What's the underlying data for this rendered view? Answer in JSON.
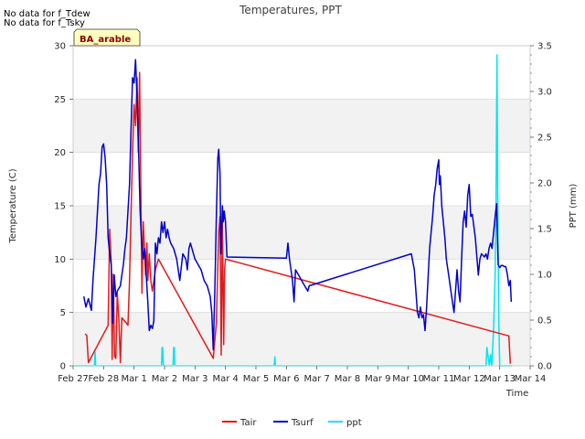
{
  "notes": [
    "No data for f_Tdew",
    "No data for f_Tsky"
  ],
  "site_label": "BA_arable",
  "colors": {
    "Tair": "#e31a1c",
    "Tsurf": "#0000cc",
    "ppt": "#00e5ee",
    "band": "#f2f2f2",
    "grid": "#dcdcdc",
    "site_bg": "#ffffc0"
  },
  "chart_data": {
    "type": "line",
    "title": "Temperatures, PPT",
    "xlabel": "Time",
    "ylabel": "Temperature (C)",
    "y2label": "PPT (mm)",
    "xlim": [
      0,
      15
    ],
    "ylim": [
      0,
      30
    ],
    "y2lim": [
      0,
      3.5
    ],
    "x_ticks": [
      0,
      1,
      2,
      3,
      4,
      5,
      6,
      7,
      8,
      9,
      10,
      11,
      12,
      13,
      14,
      15
    ],
    "x_tick_labels": [
      "Feb 27",
      "Feb 28",
      "Mar 1",
      "Mar 2",
      "Mar 3",
      "Mar 4",
      "Mar 5",
      "Mar 6",
      "Mar 7",
      "Mar 8",
      "Mar 9",
      "Mar 10",
      "Mar 11",
      "Mar 12",
      "Mar 13",
      "Mar 14"
    ],
    "y_ticks": [
      0,
      5,
      10,
      15,
      20,
      25,
      30
    ],
    "y2_ticks": [
      0,
      0.5,
      1.0,
      1.5,
      2.0,
      2.5,
      3.0,
      3.5
    ],
    "y2_tick_labels": [
      "0.0",
      "0.5",
      "1.0",
      "1.5",
      "2.0",
      "2.5",
      "3.0",
      "3.5"
    ],
    "series": [
      {
        "name": "Tair",
        "axis": "left",
        "points": [
          [
            0.4,
            3.0
          ],
          [
            0.45,
            2.8
          ],
          [
            0.5,
            0.3
          ],
          [
            1.15,
            3.8
          ],
          [
            1.2,
            12.8
          ],
          [
            1.25,
            9.6
          ],
          [
            1.28,
            0.6
          ],
          [
            1.32,
            8.6
          ],
          [
            1.36,
            0.9
          ],
          [
            1.4,
            0.7
          ],
          [
            1.45,
            6.8
          ],
          [
            1.5,
            4.4
          ],
          [
            1.55,
            0.3
          ],
          [
            1.6,
            4.5
          ],
          [
            1.75,
            4.0
          ],
          [
            1.8,
            3.8
          ],
          [
            1.85,
            8.0
          ],
          [
            1.9,
            14.0
          ],
          [
            1.95,
            20.0
          ],
          [
            2.0,
            24.5
          ],
          [
            2.05,
            22.5
          ],
          [
            2.1,
            27.0
          ],
          [
            2.14,
            20.0
          ],
          [
            2.18,
            27.5
          ],
          [
            2.22,
            17.0
          ],
          [
            2.26,
            6.8
          ],
          [
            2.3,
            13.5
          ],
          [
            2.34,
            11.0
          ],
          [
            2.38,
            8.5
          ],
          [
            2.42,
            11.5
          ],
          [
            2.45,
            8.0
          ],
          [
            2.5,
            10.5
          ],
          [
            2.55,
            8.0
          ],
          [
            2.6,
            7.0
          ],
          [
            2.7,
            9.0
          ],
          [
            2.8,
            10.0
          ],
          [
            4.6,
            0.7
          ],
          [
            4.7,
            4.0
          ],
          [
            4.78,
            12.5
          ],
          [
            4.82,
            14.0
          ],
          [
            4.86,
            1.0
          ],
          [
            4.9,
            13.5
          ],
          [
            4.94,
            2.0
          ],
          [
            4.97,
            9.0
          ],
          [
            5.0,
            10.0
          ],
          [
            14.3,
            2.8
          ],
          [
            14.35,
            0.2
          ]
        ]
      },
      {
        "name": "Tsurf",
        "axis": "left",
        "points": [
          [
            0.35,
            6.5
          ],
          [
            0.42,
            5.5
          ],
          [
            0.5,
            6.3
          ],
          [
            0.6,
            5.2
          ],
          [
            0.65,
            8.0
          ],
          [
            0.75,
            12.0
          ],
          [
            0.85,
            17.0
          ],
          [
            0.9,
            18.0
          ],
          [
            0.95,
            20.5
          ],
          [
            1.0,
            20.8
          ],
          [
            1.05,
            19.5
          ],
          [
            1.1,
            17.0
          ],
          [
            1.15,
            12.0
          ],
          [
            1.2,
            10.5
          ],
          [
            1.25,
            9.5
          ],
          [
            1.3,
            4.0
          ],
          [
            1.35,
            8.5
          ],
          [
            1.4,
            6.5
          ],
          [
            1.45,
            7.0
          ],
          [
            1.55,
            7.5
          ],
          [
            1.6,
            8.5
          ],
          [
            1.65,
            9.5
          ],
          [
            1.7,
            11.0
          ],
          [
            1.75,
            12.0
          ],
          [
            1.8,
            14.5
          ],
          [
            1.85,
            17.0
          ],
          [
            1.9,
            22.0
          ],
          [
            1.95,
            27.0
          ],
          [
            2.0,
            26.5
          ],
          [
            2.05,
            28.7
          ],
          [
            2.1,
            25.0
          ],
          [
            2.15,
            20.0
          ],
          [
            2.2,
            14.5
          ],
          [
            2.25,
            11.5
          ],
          [
            2.3,
            10.0
          ],
          [
            2.35,
            11.0
          ],
          [
            2.4,
            8.5
          ],
          [
            2.45,
            6.0
          ],
          [
            2.5,
            3.3
          ],
          [
            2.55,
            3.8
          ],
          [
            2.6,
            3.5
          ],
          [
            2.65,
            4.2
          ],
          [
            2.7,
            11.5
          ],
          [
            2.75,
            10.5
          ],
          [
            2.8,
            12.0
          ],
          [
            2.85,
            11.5
          ],
          [
            2.9,
            13.5
          ],
          [
            2.95,
            12.5
          ],
          [
            3.0,
            13.5
          ],
          [
            3.05,
            12.0
          ],
          [
            3.1,
            12.8
          ],
          [
            3.15,
            12.0
          ],
          [
            3.2,
            11.5
          ],
          [
            3.3,
            11.0
          ],
          [
            3.4,
            10.0
          ],
          [
            3.5,
            8.0
          ],
          [
            3.6,
            10.5
          ],
          [
            3.7,
            10.0
          ],
          [
            3.75,
            9.0
          ],
          [
            3.8,
            11.0
          ],
          [
            3.85,
            11.5
          ],
          [
            3.9,
            11.0
          ],
          [
            4.0,
            10.0
          ],
          [
            4.1,
            9.5
          ],
          [
            4.2,
            9.0
          ],
          [
            4.3,
            8.0
          ],
          [
            4.4,
            7.5
          ],
          [
            4.5,
            6.5
          ],
          [
            4.55,
            5.0
          ],
          [
            4.6,
            1.5
          ],
          [
            4.65,
            7.0
          ],
          [
            4.7,
            14.0
          ],
          [
            4.75,
            19.5
          ],
          [
            4.78,
            20.3
          ],
          [
            4.82,
            18.0
          ],
          [
            4.85,
            10.5
          ],
          [
            4.88,
            13.0
          ],
          [
            4.9,
            15.0
          ],
          [
            4.93,
            13.5
          ],
          [
            4.96,
            14.5
          ],
          [
            5.0,
            13.5
          ],
          [
            5.05,
            10.2
          ],
          [
            7.0,
            10.1
          ],
          [
            7.05,
            11.5
          ],
          [
            7.1,
            10.0
          ],
          [
            7.2,
            8.0
          ],
          [
            7.25,
            6.0
          ],
          [
            7.3,
            9.0
          ],
          [
            7.4,
            8.5
          ],
          [
            7.5,
            8.0
          ],
          [
            7.6,
            7.5
          ],
          [
            7.7,
            7.0
          ],
          [
            7.75,
            7.5
          ],
          [
            11.1,
            10.5
          ],
          [
            11.2,
            9.0
          ],
          [
            11.25,
            7.0
          ],
          [
            11.3,
            5.0
          ],
          [
            11.35,
            4.5
          ],
          [
            11.4,
            5.5
          ],
          [
            11.45,
            4.5
          ],
          [
            11.5,
            4.8
          ],
          [
            11.55,
            3.3
          ],
          [
            11.6,
            5.5
          ],
          [
            11.7,
            11.0
          ],
          [
            11.8,
            14.0
          ],
          [
            11.85,
            16.0
          ],
          [
            11.9,
            17.0
          ],
          [
            11.95,
            18.5
          ],
          [
            12.0,
            19.3
          ],
          [
            12.02,
            17.0
          ],
          [
            12.05,
            17.8
          ],
          [
            12.1,
            15.0
          ],
          [
            12.2,
            12.0
          ],
          [
            12.25,
            10.0
          ],
          [
            12.3,
            9.0
          ],
          [
            12.35,
            8.0
          ],
          [
            12.4,
            7.0
          ],
          [
            12.45,
            6.0
          ],
          [
            12.5,
            5.0
          ],
          [
            12.6,
            9.0
          ],
          [
            12.65,
            7.0
          ],
          [
            12.7,
            6.0
          ],
          [
            12.75,
            10.0
          ],
          [
            12.8,
            13.5
          ],
          [
            12.85,
            14.5
          ],
          [
            12.9,
            13.0
          ],
          [
            12.95,
            16.0
          ],
          [
            13.0,
            17.0
          ],
          [
            13.05,
            14.0
          ],
          [
            13.1,
            14.2
          ],
          [
            13.2,
            12.0
          ],
          [
            13.3,
            8.5
          ],
          [
            13.35,
            10.0
          ],
          [
            13.4,
            10.5
          ],
          [
            13.5,
            10.2
          ],
          [
            13.55,
            10.5
          ],
          [
            13.6,
            10.0
          ],
          [
            13.65,
            11.0
          ],
          [
            13.7,
            11.5
          ],
          [
            13.75,
            11.0
          ],
          [
            13.8,
            12.5
          ],
          [
            13.85,
            14.0
          ],
          [
            13.9,
            15.2
          ],
          [
            13.95,
            9.5
          ],
          [
            14.0,
            9.2
          ],
          [
            14.05,
            9.4
          ],
          [
            14.1,
            9.4
          ],
          [
            14.15,
            9.3
          ],
          [
            14.2,
            9.3
          ],
          [
            14.25,
            8.6
          ],
          [
            14.3,
            7.5
          ],
          [
            14.35,
            8.0
          ],
          [
            14.38,
            6.0
          ]
        ]
      },
      {
        "name": "ppt",
        "axis": "right",
        "points": [
          [
            0,
            0
          ],
          [
            0.7,
            0
          ],
          [
            0.72,
            0.15
          ],
          [
            0.74,
            0
          ],
          [
            2.9,
            0
          ],
          [
            2.92,
            0.2
          ],
          [
            2.94,
            0.2
          ],
          [
            2.96,
            0
          ],
          [
            3.28,
            0
          ],
          [
            3.3,
            0.2
          ],
          [
            3.32,
            0.2
          ],
          [
            3.34,
            0
          ],
          [
            6.6,
            0
          ],
          [
            6.62,
            0.1
          ],
          [
            6.64,
            0
          ],
          [
            13.55,
            0
          ],
          [
            13.58,
            0.2
          ],
          [
            13.62,
            0.1
          ],
          [
            13.66,
            0
          ],
          [
            13.7,
            0.12
          ],
          [
            13.74,
            0
          ],
          [
            13.8,
            0.4
          ],
          [
            13.85,
            1.0
          ],
          [
            13.88,
            1.8
          ],
          [
            13.91,
            3.4
          ],
          [
            13.94,
            1.5
          ],
          [
            13.97,
            0.5
          ],
          [
            14.0,
            0
          ],
          [
            14.4,
            0
          ]
        ]
      }
    ],
    "legend": [
      "Tair",
      "Tsurf",
      "ppt"
    ],
    "legend_position": "bottom-center"
  }
}
